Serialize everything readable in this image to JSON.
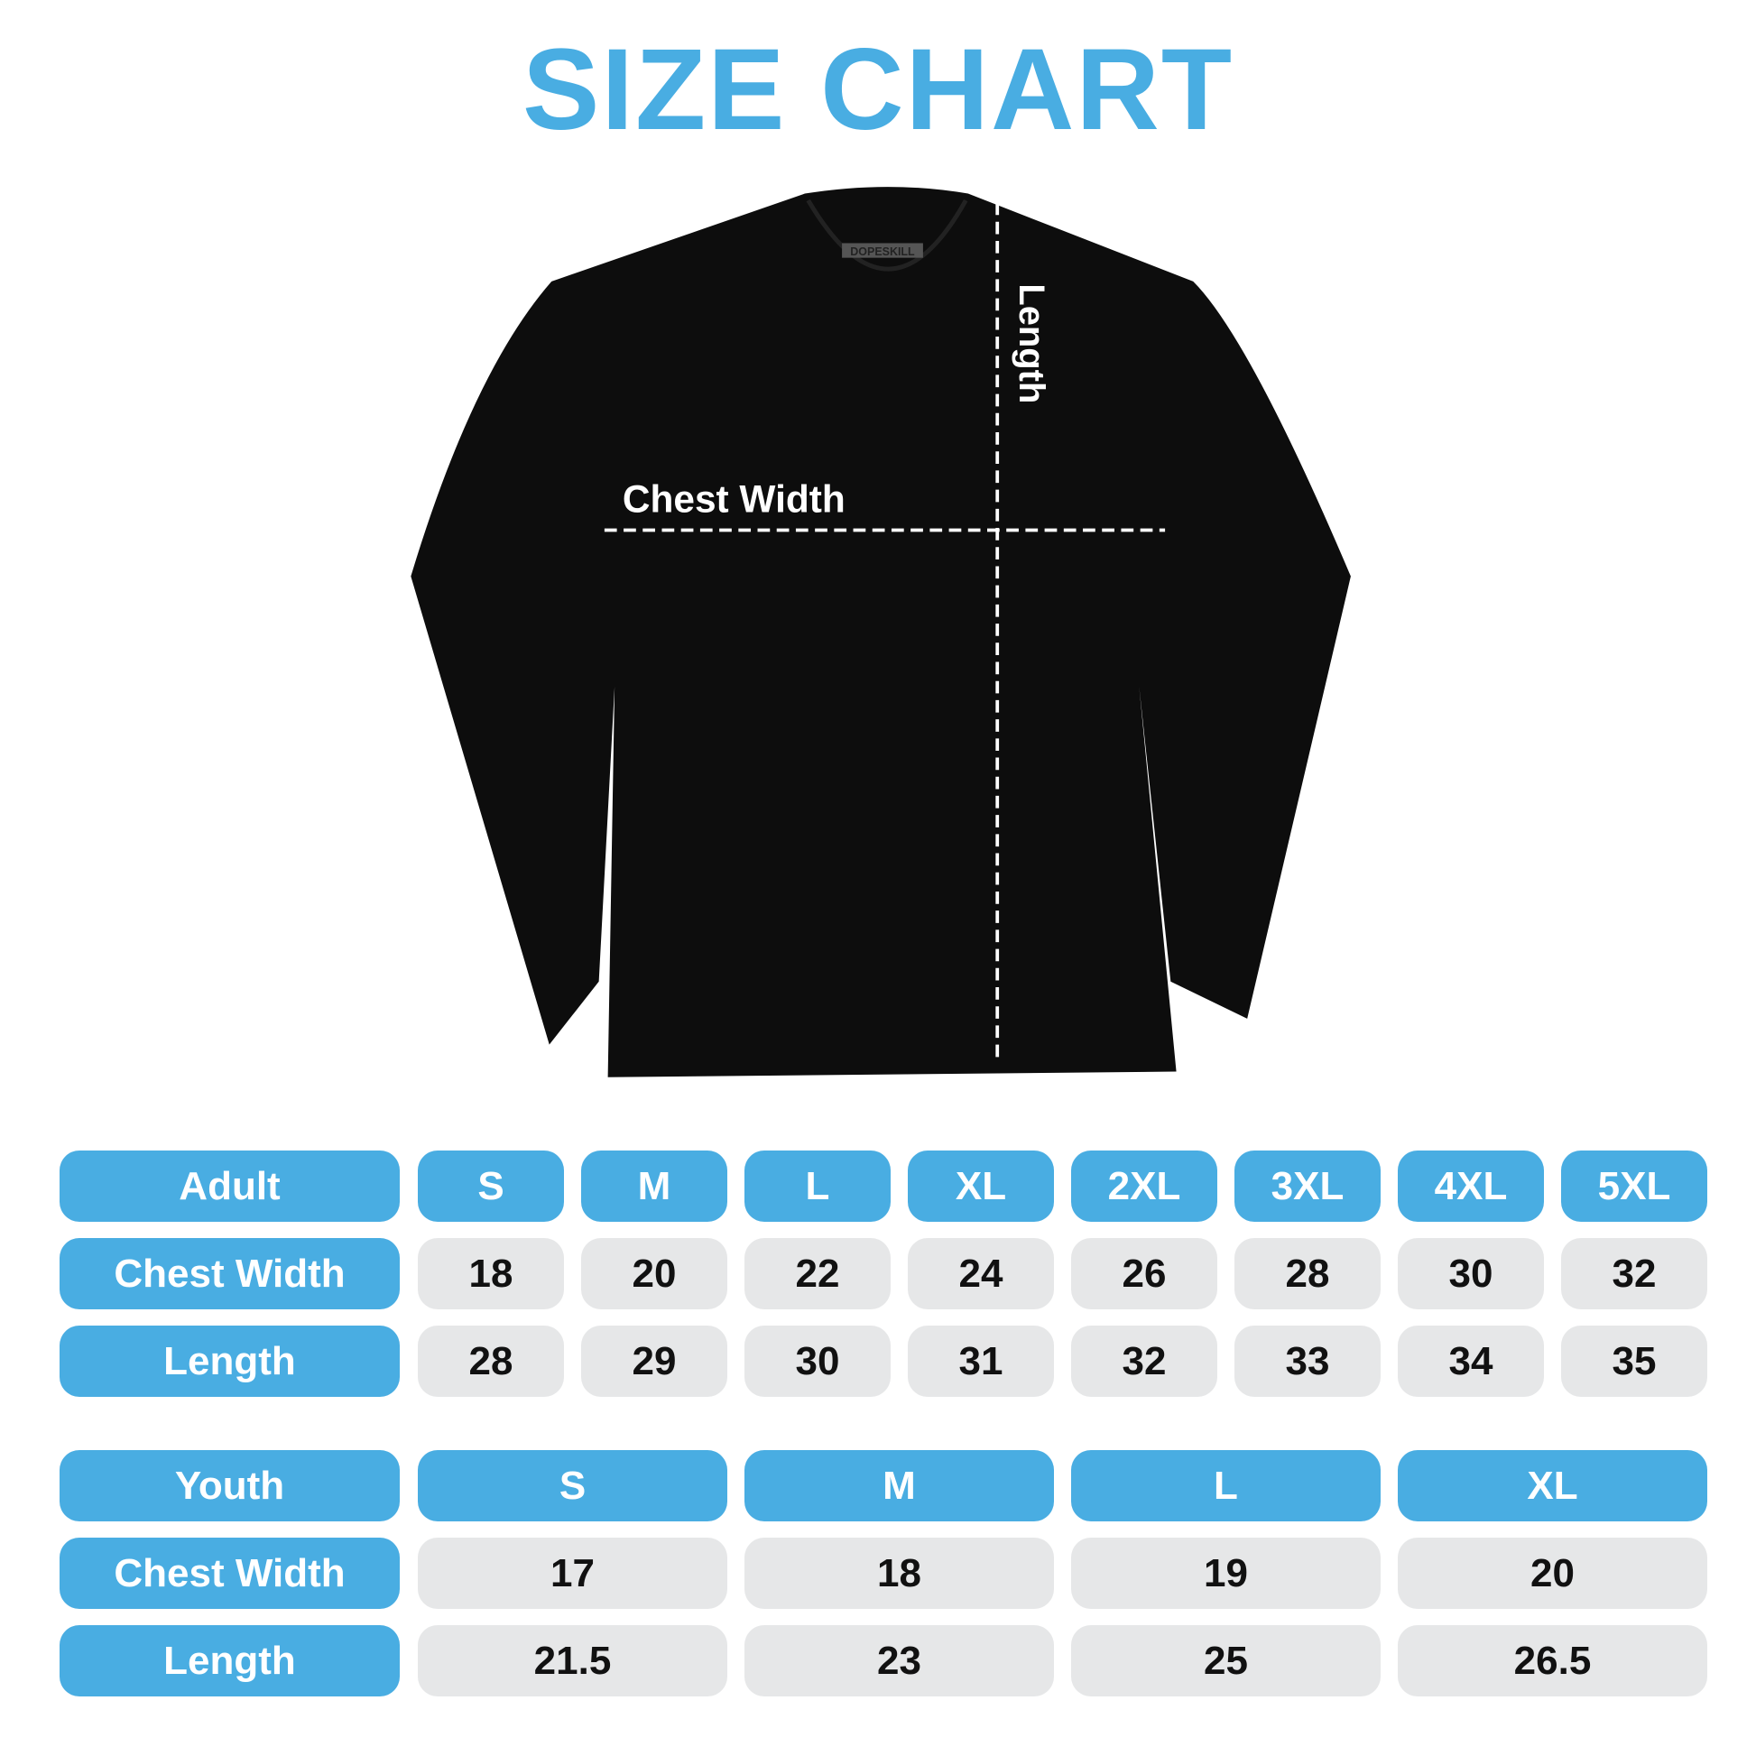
{
  "title": "SIZE CHART",
  "colors": {
    "accent": "#49ade2",
    "cell": "#e6e7e8",
    "shirt": "#0d0d0d"
  },
  "shirt": {
    "brand_tag": "DOPESKILL",
    "chest_label": "Chest Width",
    "length_label": "Length"
  },
  "adult": {
    "header": "Adult",
    "sizes": [
      "S",
      "M",
      "L",
      "XL",
      "2XL",
      "3XL",
      "4XL",
      "5XL"
    ],
    "rows": [
      {
        "label": "Chest Width",
        "values": [
          "18",
          "20",
          "22",
          "24",
          "26",
          "28",
          "30",
          "32"
        ]
      },
      {
        "label": "Length",
        "values": [
          "28",
          "29",
          "30",
          "31",
          "32",
          "33",
          "34",
          "35"
        ]
      }
    ]
  },
  "youth": {
    "header": "Youth",
    "sizes": [
      "S",
      "M",
      "L",
      "XL"
    ],
    "rows": [
      {
        "label": "Chest Width",
        "values": [
          "17",
          "18",
          "19",
          "20"
        ]
      },
      {
        "label": "Length",
        "values": [
          "21.5",
          "23",
          "25",
          "26.5"
        ]
      }
    ]
  }
}
